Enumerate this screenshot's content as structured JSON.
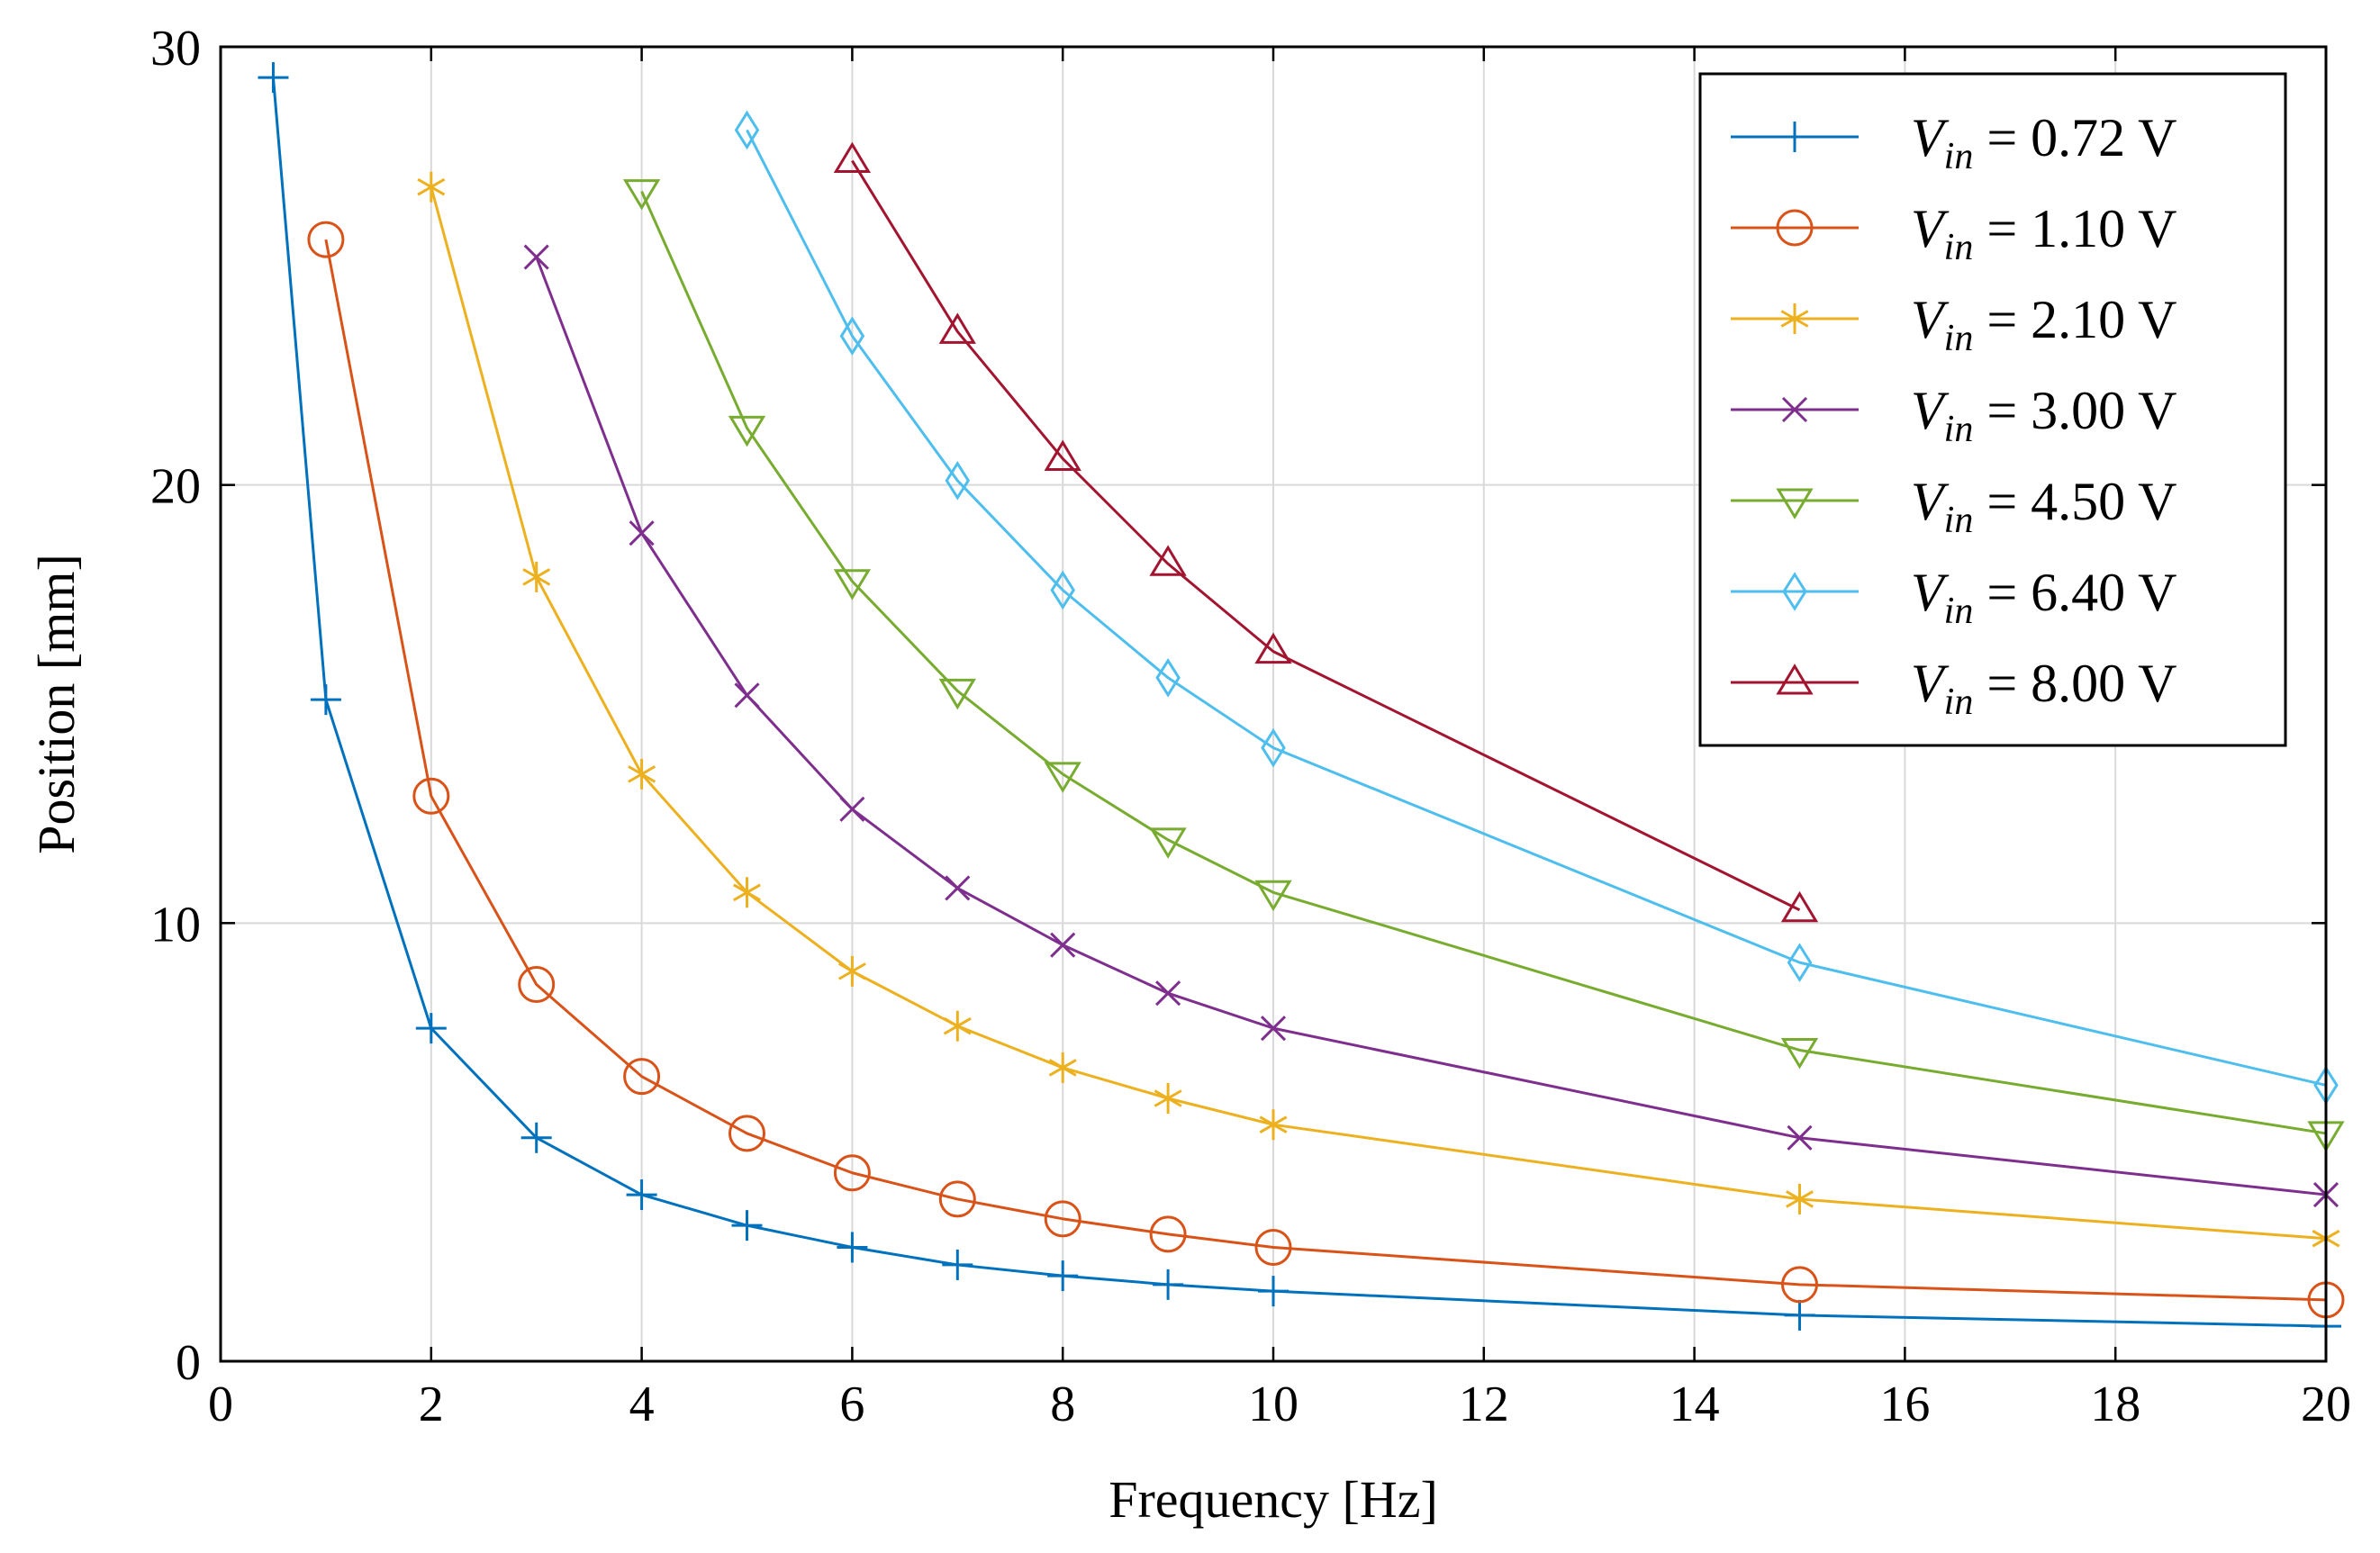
{
  "chart_data": {
    "type": "line",
    "title": "",
    "xlabel": "Frequency [Hz]",
    "ylabel": "Position [mm]",
    "xlim": [
      0,
      20
    ],
    "ylim": [
      0,
      30
    ],
    "xticks": [
      0,
      2,
      4,
      6,
      8,
      10,
      12,
      14,
      16,
      18,
      20
    ],
    "yticks": [
      0,
      10,
      20,
      30
    ],
    "grid": true,
    "legend_position": "top-right",
    "legend_var": "V",
    "legend_sub": "in",
    "legend_unit": "V",
    "series": [
      {
        "name": "V_in = 0.72 V",
        "value_label": "0.72",
        "color": "#0072BD",
        "marker": "plus",
        "x": [
          0.5,
          1,
          2,
          3,
          4,
          5,
          6,
          7,
          8,
          9,
          10,
          15,
          20
        ],
        "y": [
          29.3,
          15.1,
          7.6,
          5.1,
          3.8,
          3.1,
          2.6,
          2.2,
          1.95,
          1.75,
          1.6,
          1.05,
          0.8
        ]
      },
      {
        "name": "V_in = 1.10 V",
        "value_label": "1.10",
        "color": "#D95319",
        "marker": "circle",
        "x": [
          1,
          2,
          3,
          4,
          5,
          6,
          7,
          8,
          9,
          10,
          15,
          20
        ],
        "y": [
          25.6,
          12.9,
          8.6,
          6.5,
          5.2,
          4.3,
          3.7,
          3.25,
          2.9,
          2.6,
          1.75,
          1.4
        ]
      },
      {
        "name": "V_in = 2.10 V",
        "value_label": "2.10",
        "color": "#EDB120",
        "marker": "asterisk",
        "x": [
          2,
          3,
          4,
          5,
          6,
          7,
          8,
          9,
          10,
          15,
          20
        ],
        "y": [
          26.8,
          17.9,
          13.4,
          10.7,
          8.9,
          7.65,
          6.7,
          6.0,
          5.4,
          3.7,
          2.8
        ]
      },
      {
        "name": "V_in = 3.00 V",
        "value_label": "3.00",
        "color": "#7E2F8E",
        "marker": "x",
        "x": [
          3,
          4,
          5,
          6,
          7,
          8,
          9,
          10,
          15,
          20
        ],
        "y": [
          25.2,
          18.9,
          15.2,
          12.6,
          10.8,
          9.5,
          8.4,
          7.6,
          5.1,
          3.8
        ]
      },
      {
        "name": "V_in = 4.50 V",
        "value_label": "4.50",
        "color": "#77AC30",
        "marker": "triangle-down",
        "x": [
          4,
          5,
          6,
          7,
          8,
          9,
          10,
          15,
          20
        ],
        "y": [
          26.7,
          21.3,
          17.8,
          15.3,
          13.4,
          11.9,
          10.7,
          7.1,
          5.2
        ]
      },
      {
        "name": "V_in = 6.40 V",
        "value_label": "6.40",
        "color": "#4DBEEE",
        "marker": "diamond",
        "x": [
          5,
          6,
          7,
          8,
          9,
          10,
          15,
          20
        ],
        "y": [
          28.1,
          23.4,
          20.1,
          17.6,
          15.6,
          14.0,
          9.1,
          6.3
        ]
      },
      {
        "name": "V_in = 8.00 V",
        "value_label": "8.00",
        "color": "#A2142F",
        "marker": "triangle-up",
        "x": [
          6,
          7,
          8,
          9,
          10,
          15
        ],
        "y": [
          27.4,
          23.5,
          20.6,
          18.2,
          16.2,
          10.3
        ]
      }
    ]
  }
}
